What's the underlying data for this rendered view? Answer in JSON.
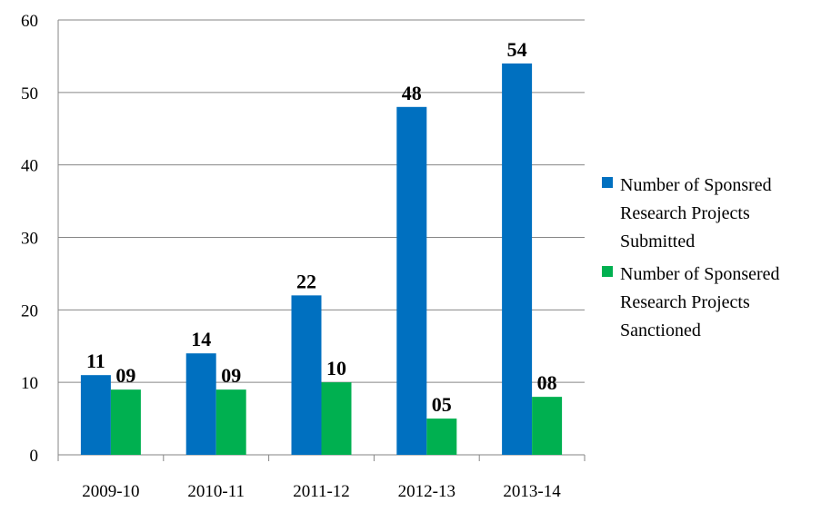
{
  "chart_data": {
    "type": "bar",
    "title": "",
    "xlabel": "",
    "ylabel": "",
    "categories": [
      "2009-10",
      "2010-11",
      "2011-12",
      "2012-13",
      "2013-14"
    ],
    "ylim": [
      0,
      60
    ],
    "yticks": [
      "0",
      "10",
      "20",
      "30",
      "40",
      "50",
      "60"
    ],
    "grid": true,
    "legend_position": "right",
    "series": [
      {
        "name": "Number of Sponsred Research Projects Submitted",
        "legend_lines": [
          "Number of Sponsred",
          "Research Projects",
          "Submitted"
        ],
        "color": "#0070C0",
        "values": [
          11,
          14,
          22,
          48,
          54
        ],
        "data_labels": [
          "11",
          "14",
          "22",
          "48",
          "54"
        ]
      },
      {
        "name": "Number of Sponsered Research Projects Sanctioned",
        "legend_lines": [
          "Number of Sponsered",
          "Research Projects",
          "Sanctioned"
        ],
        "color": "#00B050",
        "values": [
          9,
          9,
          10,
          5,
          8
        ],
        "data_labels": [
          "09",
          "09",
          "10",
          "05",
          "08"
        ]
      }
    ]
  }
}
